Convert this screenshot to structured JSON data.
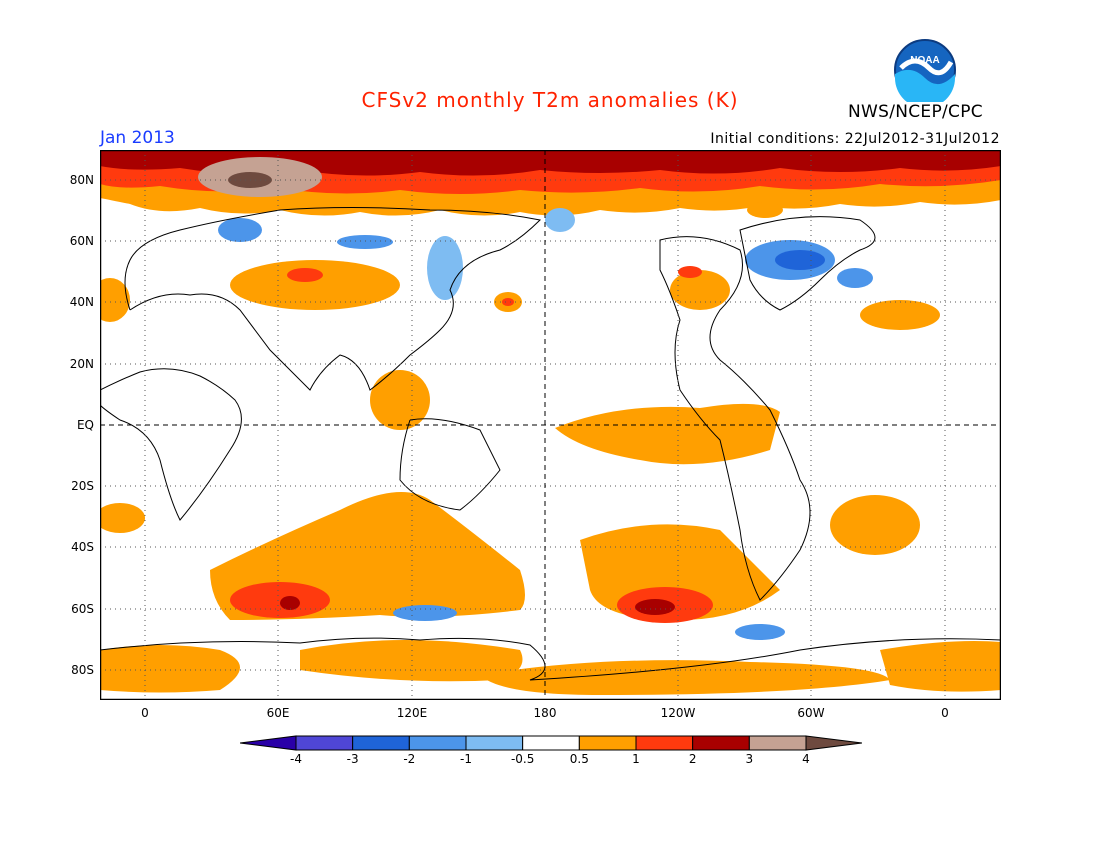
{
  "header": {
    "title": "CFSv2 monthly T2m anomalies (K)",
    "title_color": "#ff2200",
    "month": "Jan 2013",
    "month_color": "#1a3cff",
    "initial_conditions": "Initial conditions: 22Jul2012-31Jul2012",
    "agency": "NWS/NCEP/CPC",
    "logo_text": "NOAA"
  },
  "map": {
    "lat_labels": [
      "80N",
      "60N",
      "40N",
      "20N",
      "EQ",
      "20S",
      "40S",
      "60S",
      "80S"
    ],
    "lon_labels": [
      "0",
      "60E",
      "120E",
      "180",
      "120W",
      "60W",
      "0"
    ],
    "equator_dashed": true,
    "dateline_dashed": true,
    "grid": "dotted"
  },
  "legend": {
    "levels": [
      "-4",
      "-3",
      "-2",
      "-1",
      "-0.5",
      "0.5",
      "1",
      "2",
      "3",
      "4"
    ],
    "colors": [
      "#2a00a8",
      "#4f46d6",
      "#1f64d8",
      "#4c95ea",
      "#7ebcf2",
      "#ffffff",
      "#ff9f00",
      "#ff3a0e",
      "#a80000",
      "#c5a293",
      "#6e4a3f"
    ]
  },
  "chart_data": {
    "type": "heatmap",
    "title": "CFSv2 monthly T2m anomalies (K)",
    "subtitle": "Jan 2013",
    "xlabel": "",
    "ylabel": "",
    "x_range": [
      "20W",
      "0 (+20E)"
    ],
    "y_range": [
      "90S",
      "90N"
    ],
    "contour_levels": [
      -4,
      -3,
      -2,
      -1,
      -0.5,
      0.5,
      1,
      2,
      3,
      4
    ],
    "units": "K",
    "features": [
      {
        "region": "Arctic (north of ~70N)",
        "anomaly_K": "1 to >4"
      },
      {
        "region": "Equatorial eastern Pacific",
        "anomaly_K": "0.5 to 1"
      },
      {
        "region": "Southern Indian Ocean",
        "anomaly_K": "0.5 to 3"
      },
      {
        "region": "South Pacific near 55S 120W",
        "anomaly_K": "1 to 3"
      },
      {
        "region": "Antarctic coast",
        "anomaly_K": "0.5 to 1"
      },
      {
        "region": "Eastern North America / Hudson Bay",
        "anomaly_K": "-0.5 to -2"
      },
      {
        "region": "Central Asia / Mongolia",
        "anomaly_K": "0.5 to 2"
      },
      {
        "region": "East Siberia / Japan",
        "anomaly_K": "-0.5 to -1"
      }
    ]
  }
}
